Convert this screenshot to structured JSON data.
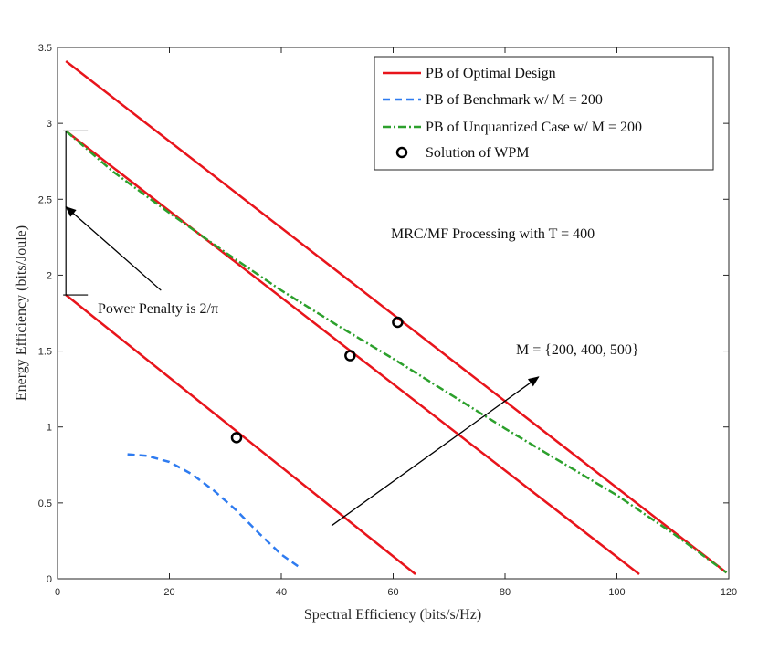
{
  "chart_data": {
    "type": "line",
    "xlabel": "Spectral Efficiency (bits/s/Hz)",
    "ylabel": "Energy Efficiency (bits/Joule)",
    "xlim": [
      0,
      120
    ],
    "ylim": [
      0,
      3.5
    ],
    "xticks": [
      0,
      20,
      40,
      60,
      80,
      100,
      120
    ],
    "yticks": [
      0,
      0.5,
      1,
      1.5,
      2,
      2.5,
      3,
      3.5
    ],
    "xtick_labels": [
      "0",
      "20",
      "40",
      "60",
      "80",
      "100",
      "120"
    ],
    "ytick_labels": [
      "0",
      "0.5",
      "1",
      "1.5",
      "2",
      "2.5",
      "3",
      "3.5"
    ],
    "grid": false,
    "legend_position": "top-right",
    "series": [
      {
        "name": "PB of Optimal Design (M = 200)",
        "legend_group": "optimal",
        "color": "#e8141b",
        "style": "solid",
        "x": [
          1.5,
          64
        ],
        "y": [
          1.87,
          0.03
        ]
      },
      {
        "name": "PB of Optimal Design (M = 400)",
        "legend_group": "optimal",
        "color": "#e8141b",
        "style": "solid",
        "x": [
          1.5,
          104
        ],
        "y": [
          2.95,
          0.03
        ]
      },
      {
        "name": "PB of Optimal Design (M = 500)",
        "legend_group": "optimal",
        "color": "#e8141b",
        "style": "solid",
        "x": [
          1.5,
          119.6
        ],
        "y": [
          3.41,
          0.04
        ]
      },
      {
        "name": "PB of Benchmark w/ M = 200",
        "legend_group": "benchmark",
        "color": "#2e7bf0",
        "style": "dashed",
        "x": [
          12.5,
          16,
          20,
          24,
          28,
          32,
          36,
          40,
          43.5
        ],
        "y": [
          0.82,
          0.81,
          0.77,
          0.69,
          0.58,
          0.45,
          0.3,
          0.16,
          0.07
        ]
      },
      {
        "name": "PB of Unquantized Case w/ M = 200",
        "legend_group": "unquantized",
        "color": "#2ca02c",
        "style": "dashdot",
        "x": [
          1.5,
          10,
          20,
          30,
          40,
          50,
          60,
          70,
          80,
          90,
          100,
          110,
          119.6
        ],
        "y": [
          2.95,
          2.68,
          2.41,
          2.15,
          1.9,
          1.67,
          1.45,
          1.22,
          0.99,
          0.77,
          0.55,
          0.3,
          0.04
        ]
      }
    ],
    "markers": {
      "name": "Solution of WPM",
      "points": [
        {
          "x": 32,
          "y": 0.93
        },
        {
          "x": 52.3,
          "y": 1.47
        },
        {
          "x": 60.8,
          "y": 1.69
        }
      ]
    },
    "legend": [
      {
        "key": "optimal",
        "label": "PB of Optimal Design",
        "style": "solid",
        "color": "#e8141b"
      },
      {
        "key": "benchmark",
        "label": "PB of Benchmark w/ M = 200",
        "style": "dashed",
        "color": "#2e7bf0"
      },
      {
        "key": "unquantized",
        "label": "PB of Unquantized Case w/ M = 200",
        "style": "dashdot",
        "color": "#2ca02c"
      },
      {
        "key": "wpm",
        "label": "Solution of WPM",
        "style": "marker",
        "color": "#000000"
      }
    ],
    "annotations": {
      "processing": "MRC/MF Processing with T = 400",
      "m_set": "M = {200, 400, 500}",
      "penalty": "Power Penalty is 2/π"
    },
    "bracket": {
      "x": 1.5,
      "y_top": 2.95,
      "y_bottom": 1.87
    },
    "arrows": [
      {
        "name": "m-set-arrow",
        "from": [
          49,
          0.35
        ],
        "to": [
          86,
          1.33
        ]
      },
      {
        "name": "penalty-arrow",
        "from": [
          18.5,
          1.9
        ],
        "to": [
          1.5,
          2.45
        ]
      }
    ]
  }
}
